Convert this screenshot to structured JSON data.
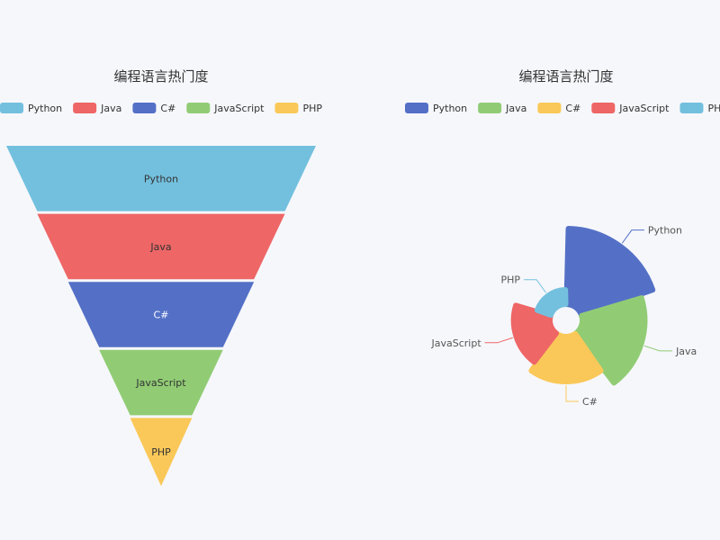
{
  "charts": {
    "funnel_title": "编程语言热门度",
    "rose_title": "编程语言热门度"
  },
  "chart_data": [
    {
      "type": "funnel",
      "title": "编程语言热门度",
      "legend": [
        "Python",
        "Java",
        "C#",
        "JavaScript",
        "PHP"
      ],
      "legend_placement": "top",
      "categories": [
        "Python",
        "Java",
        "C#",
        "JavaScript",
        "PHP"
      ],
      "values": [
        100,
        80,
        60,
        40,
        20
      ],
      "colors": [
        "#73c0de",
        "#ee6666",
        "#5470c6",
        "#91cc75",
        "#fac858"
      ],
      "sort": "descending"
    },
    {
      "type": "pie",
      "subtype": "rose",
      "title": "编程语言热门度",
      "legend": [
        "Python",
        "Java",
        "C#",
        "JavaScript",
        "PHP"
      ],
      "legend_placement": "top",
      "categories": [
        "Python",
        "Java",
        "C#",
        "JavaScript",
        "PHP"
      ],
      "values": [
        100,
        85,
        65,
        55,
        30
      ],
      "colors": [
        "#5470c6",
        "#91cc75",
        "#fac858",
        "#ee6666",
        "#73c0de"
      ]
    }
  ]
}
